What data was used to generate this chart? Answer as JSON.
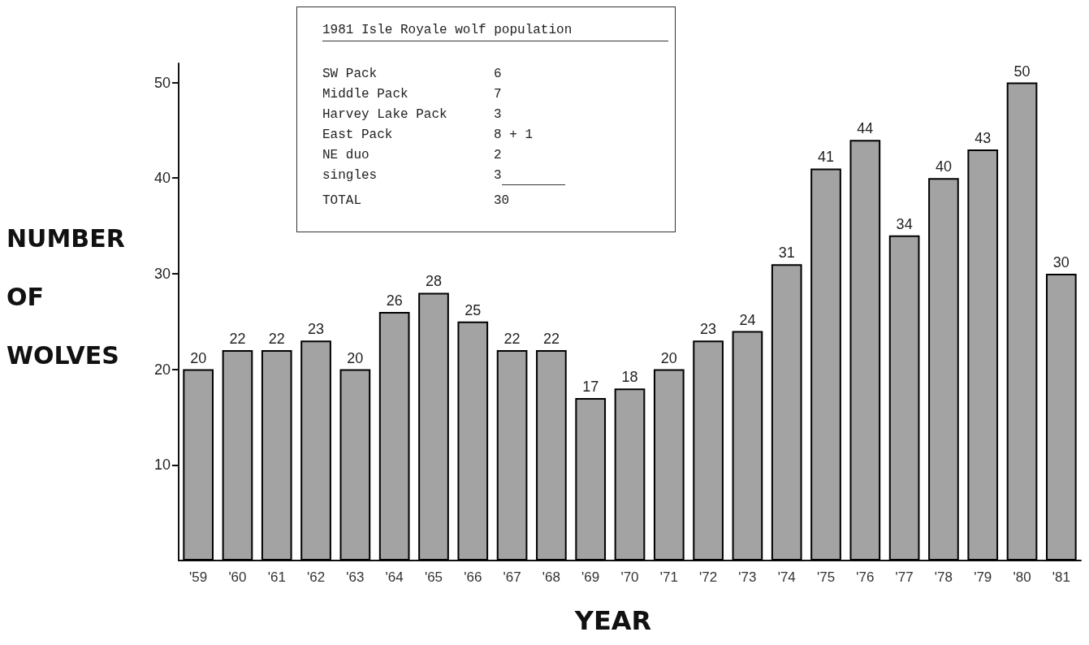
{
  "chart_data": {
    "type": "bar",
    "xlabel": "YEAR",
    "ylabel": "NUMBER OF WOLVES",
    "categories": [
      "'59",
      "'60",
      "'61",
      "'62",
      "'63",
      "'64",
      "'65",
      "'66",
      "'67",
      "'68",
      "'69",
      "'70",
      "'71",
      "'72",
      "'73",
      "'74",
      "'75",
      "'76",
      "'77",
      "'78",
      "'79",
      "'80",
      "'81"
    ],
    "values": [
      20,
      22,
      22,
      23,
      20,
      26,
      28,
      25,
      22,
      22,
      17,
      18,
      20,
      23,
      24,
      31,
      41,
      44,
      34,
      40,
      43,
      50,
      30
    ],
    "color": "#a3a3a3",
    "ylim": [
      0,
      52
    ],
    "yticks": [
      10,
      20,
      30,
      40,
      50
    ],
    "data_labels": true,
    "annotations": [
      "1981 Isle Royale wolf population",
      "SW Pack",
      "6",
      "Middle Pack",
      "7",
      "Harvey Lake Pack",
      "3",
      "East Pack",
      "8 + 1",
      "NE duo",
      "2",
      "singles",
      "3",
      "TOTAL",
      "30"
    ]
  }
}
